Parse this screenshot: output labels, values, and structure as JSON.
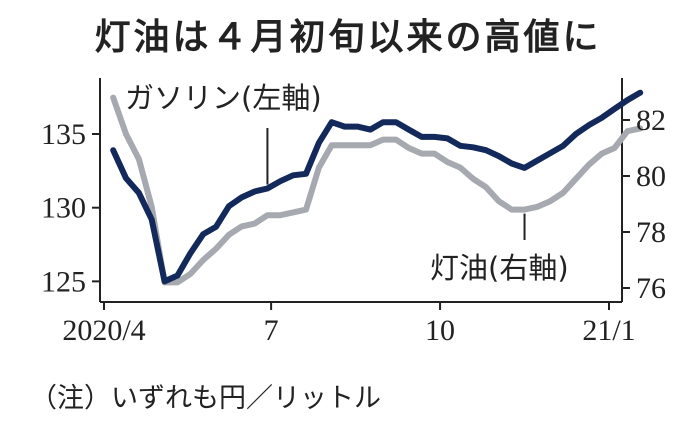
{
  "title": "灯油は４月初旬以来の高値に",
  "note": "（注）いずれも円／リットル",
  "chart_data": {
    "type": "line",
    "x_ticks": [
      "2020/4",
      "7",
      "10",
      "21/1"
    ],
    "left_axis": {
      "ticks": [
        125,
        130,
        135
      ],
      "ylim": [
        123.6,
        138.8
      ]
    },
    "right_axis": {
      "ticks": [
        76,
        78,
        80,
        82
      ],
      "ylim": [
        75.5,
        83.5
      ]
    },
    "series": [
      {
        "name": "ガソリン(左軸)",
        "axis": "left",
        "color": "#13295b",
        "x": [
          "2020-04-06",
          "2020-04-13",
          "2020-04-20",
          "2020-04-27",
          "2020-05-04",
          "2020-05-11",
          "2020-05-18",
          "2020-05-25",
          "2020-06-01",
          "2020-06-08",
          "2020-06-15",
          "2020-06-22",
          "2020-06-29",
          "2020-07-06",
          "2020-07-13",
          "2020-07-20",
          "2020-07-27",
          "2020-08-03",
          "2020-08-10",
          "2020-08-17",
          "2020-08-24",
          "2020-08-31",
          "2020-09-07",
          "2020-09-14",
          "2020-09-21",
          "2020-09-28",
          "2020-10-05",
          "2020-10-12",
          "2020-10-19",
          "2020-10-26",
          "2020-11-02",
          "2020-11-09",
          "2020-11-16",
          "2020-11-23",
          "2020-11-30",
          "2020-12-07",
          "2020-12-14",
          "2020-12-21",
          "2020-12-28",
          "2021-01-04",
          "2021-01-11",
          "2021-01-18"
        ],
        "values": [
          133.9,
          132.0,
          131.0,
          129.2,
          125.0,
          125.4,
          126.9,
          128.2,
          128.7,
          130.1,
          130.7,
          131.1,
          131.3,
          131.8,
          132.2,
          132.3,
          134.4,
          135.8,
          135.5,
          135.5,
          135.3,
          135.8,
          135.8,
          135.3,
          134.8,
          134.8,
          134.7,
          134.2,
          134.1,
          133.9,
          133.5,
          133.0,
          132.7,
          133.2,
          133.7,
          134.2,
          135.0,
          135.6,
          136.1,
          136.7,
          137.3,
          137.8
        ]
      },
      {
        "name": "灯油(右軸)",
        "axis": "right",
        "color": "#a7a9b0",
        "x": [
          "2020-04-06",
          "2020-04-13",
          "2020-04-20",
          "2020-04-27",
          "2020-05-04",
          "2020-05-11",
          "2020-05-18",
          "2020-05-25",
          "2020-06-01",
          "2020-06-08",
          "2020-06-15",
          "2020-06-22",
          "2020-06-29",
          "2020-07-06",
          "2020-07-13",
          "2020-07-20",
          "2020-07-27",
          "2020-08-03",
          "2020-08-10",
          "2020-08-17",
          "2020-08-24",
          "2020-08-31",
          "2020-09-07",
          "2020-09-14",
          "2020-09-21",
          "2020-09-28",
          "2020-10-05",
          "2020-10-12",
          "2020-10-19",
          "2020-10-26",
          "2020-11-02",
          "2020-11-09",
          "2020-11-16",
          "2020-11-23",
          "2020-11-30",
          "2020-12-07",
          "2020-12-14",
          "2020-12-21",
          "2020-12-28",
          "2021-01-04",
          "2021-01-11",
          "2021-01-18"
        ],
        "values": [
          82.8,
          81.5,
          80.6,
          78.9,
          76.2,
          76.2,
          76.5,
          77.0,
          77.4,
          77.9,
          78.2,
          78.3,
          78.6,
          78.6,
          78.7,
          78.8,
          80.3,
          81.1,
          81.1,
          81.1,
          81.1,
          81.3,
          81.3,
          81.0,
          80.8,
          80.8,
          80.5,
          80.3,
          79.9,
          79.6,
          79.1,
          78.8,
          78.8,
          78.9,
          79.1,
          79.4,
          79.9,
          80.4,
          80.8,
          81.0,
          81.6,
          81.7
        ]
      }
    ],
    "annotations": [
      {
        "text": "ガソリン(左軸)",
        "series": 0,
        "at_x": "2020-06-29"
      },
      {
        "text": "灯油(右軸)",
        "series": 1,
        "at_x": "2020-11-16"
      }
    ],
    "grid": false
  }
}
